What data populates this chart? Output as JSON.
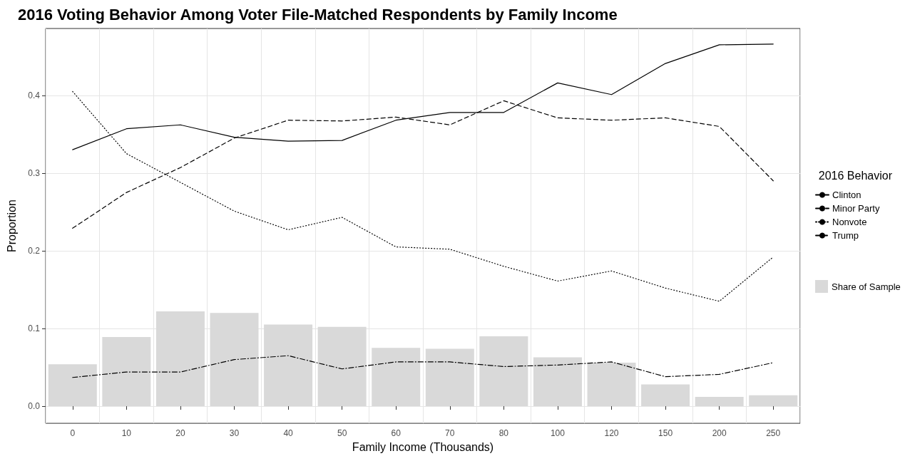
{
  "chart_data": {
    "type": "line",
    "title": "2016 Voting Behavior Among Voter File-Matched Respondents by Family Income",
    "xlabel": "Family Income (Thousands)",
    "ylabel": "Proportion",
    "legend_title": "2016 Behavior",
    "categories": [
      "0",
      "10",
      "20",
      "30",
      "40",
      "50",
      "60",
      "70",
      "80",
      "100",
      "120",
      "150",
      "200",
      "250"
    ],
    "series": [
      {
        "name": "Share of Sample",
        "type": "bar",
        "color": "#d9d9d9",
        "values": [
          0.054,
          0.089,
          0.122,
          0.12,
          0.105,
          0.102,
          0.075,
          0.074,
          0.09,
          0.063,
          0.056,
          0.028,
          0.012,
          0.014
        ]
      },
      {
        "name": "Clinton",
        "color": "#000000",
        "line_style": "solid",
        "values": [
          0.33,
          0.357,
          0.362,
          0.346,
          0.341,
          0.342,
          0.368,
          0.378,
          0.378,
          0.416,
          0.401,
          0.441,
          0.465,
          0.466
        ]
      },
      {
        "name": "Minor Party",
        "color": "#000000",
        "line_style": "dashdot",
        "values": [
          0.037,
          0.044,
          0.044,
          0.06,
          0.065,
          0.048,
          0.057,
          0.057,
          0.051,
          0.053,
          0.057,
          0.038,
          0.041,
          0.056
        ]
      },
      {
        "name": "Nonvote",
        "color": "#000000",
        "line_style": "dotted",
        "values": [
          0.405,
          0.325,
          0.288,
          0.251,
          0.227,
          0.243,
          0.205,
          0.202,
          0.18,
          0.161,
          0.174,
          0.152,
          0.135,
          0.192
        ]
      },
      {
        "name": "Trump",
        "color": "#000000",
        "line_style": "dashed",
        "values": [
          0.229,
          0.275,
          0.307,
          0.345,
          0.368,
          0.367,
          0.372,
          0.362,
          0.393,
          0.371,
          0.368,
          0.371,
          0.36,
          0.29
        ]
      }
    ],
    "ylim": [
      -0.022,
      0.486
    ],
    "yticks": [
      {
        "value": 0,
        "label": "0.0"
      },
      0.1,
      0.2,
      0.3,
      0.4
    ],
    "grid": true,
    "legend": "right",
    "marker": "none"
  }
}
